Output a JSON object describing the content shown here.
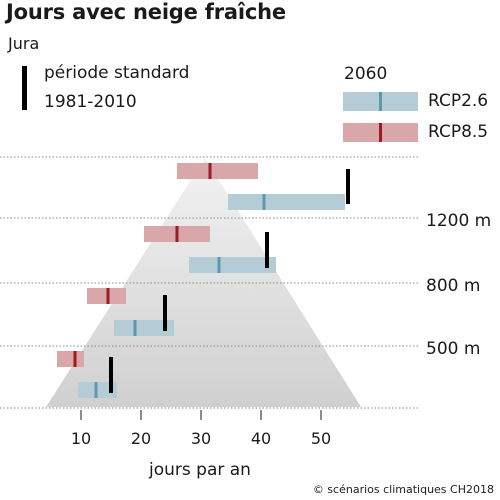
{
  "header": {
    "title": "Jours avec neige fraîche",
    "subtitle": "Jura"
  },
  "legend": {
    "standard_line1": "période standard",
    "standard_line2": "1981-2010",
    "year": "2060",
    "rcp26_label": "RCP2.6",
    "rcp85_label": "RCP8.5",
    "rcp26_color": "#b4ccd6",
    "rcp26_mid_color": "#5f97ad",
    "rcp85_color": "#d9a6aa",
    "rcp85_mid_color": "#9e1b24",
    "standard_color": "#000000"
  },
  "footer": {
    "credit": "© scénarios climatiques CH2018"
  },
  "chart_data": {
    "type": "bar",
    "title": "Jours avec neige fraîche",
    "subtitle": "Jura",
    "xlabel": "jours par an",
    "x_ticks": [
      10,
      20,
      30,
      40,
      50
    ],
    "xlim": [
      3,
      60
    ],
    "elevation_labels": [
      "1200 m",
      "800 m",
      "500 m"
    ],
    "levels": [
      {
        "std": 54.5,
        "rcp26": {
          "low": 34.5,
          "mid": 40.5,
          "high": 54
        },
        "rcp85": {
          "low": 26,
          "mid": 31.5,
          "high": 39.5
        }
      },
      {
        "std": 41,
        "rcp26": {
          "low": 28,
          "mid": 33,
          "high": 42.5
        },
        "rcp85": {
          "low": 20.5,
          "mid": 26,
          "high": 31.5
        }
      },
      {
        "std": 24,
        "rcp26": {
          "low": 15.5,
          "mid": 19,
          "high": 25.5
        },
        "rcp85": {
          "low": 11,
          "mid": 14.5,
          "high": 17.5
        }
      },
      {
        "std": 15,
        "rcp26": {
          "low": 9.5,
          "mid": 12.5,
          "high": 16
        },
        "rcp85": {
          "low": 6,
          "mid": 9,
          "high": 10.5
        }
      }
    ],
    "grid": "dotted horizontal lines between altitude levels"
  }
}
